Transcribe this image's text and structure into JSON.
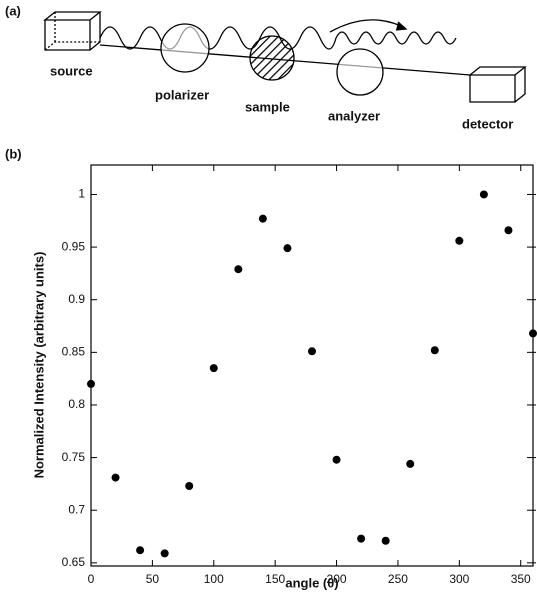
{
  "diagram": {
    "panel_label": "(a)",
    "source": "source",
    "polarizer": "polarizer",
    "sample": "sample",
    "analyzer": "analyzer",
    "detector": "detector"
  },
  "chart_data": {
    "type": "scatter",
    "panel_label": "(b)",
    "x_label": "angle (θ)",
    "y_label": "Normalized Intensity (arbitrary units)",
    "x": [
      0,
      20,
      40,
      60,
      80,
      100,
      120,
      140,
      160,
      180,
      200,
      220,
      240,
      260,
      280,
      300,
      320,
      340,
      360
    ],
    "values": [
      0.82,
      0.731,
      0.662,
      0.659,
      0.723,
      0.835,
      0.929,
      0.977,
      0.949,
      0.851,
      0.748,
      0.673,
      0.671,
      0.744,
      0.852,
      0.956,
      1.0,
      0.966,
      0.868
    ],
    "color": "#000000",
    "xlim": [
      0,
      360
    ],
    "xticks": [
      0,
      50,
      100,
      150,
      200,
      250,
      300,
      350
    ],
    "ylim": [
      0.647,
      1.028
    ],
    "yticks": [
      0.65,
      0.7,
      0.75,
      0.8,
      0.85,
      0.9,
      0.95,
      1
    ]
  }
}
